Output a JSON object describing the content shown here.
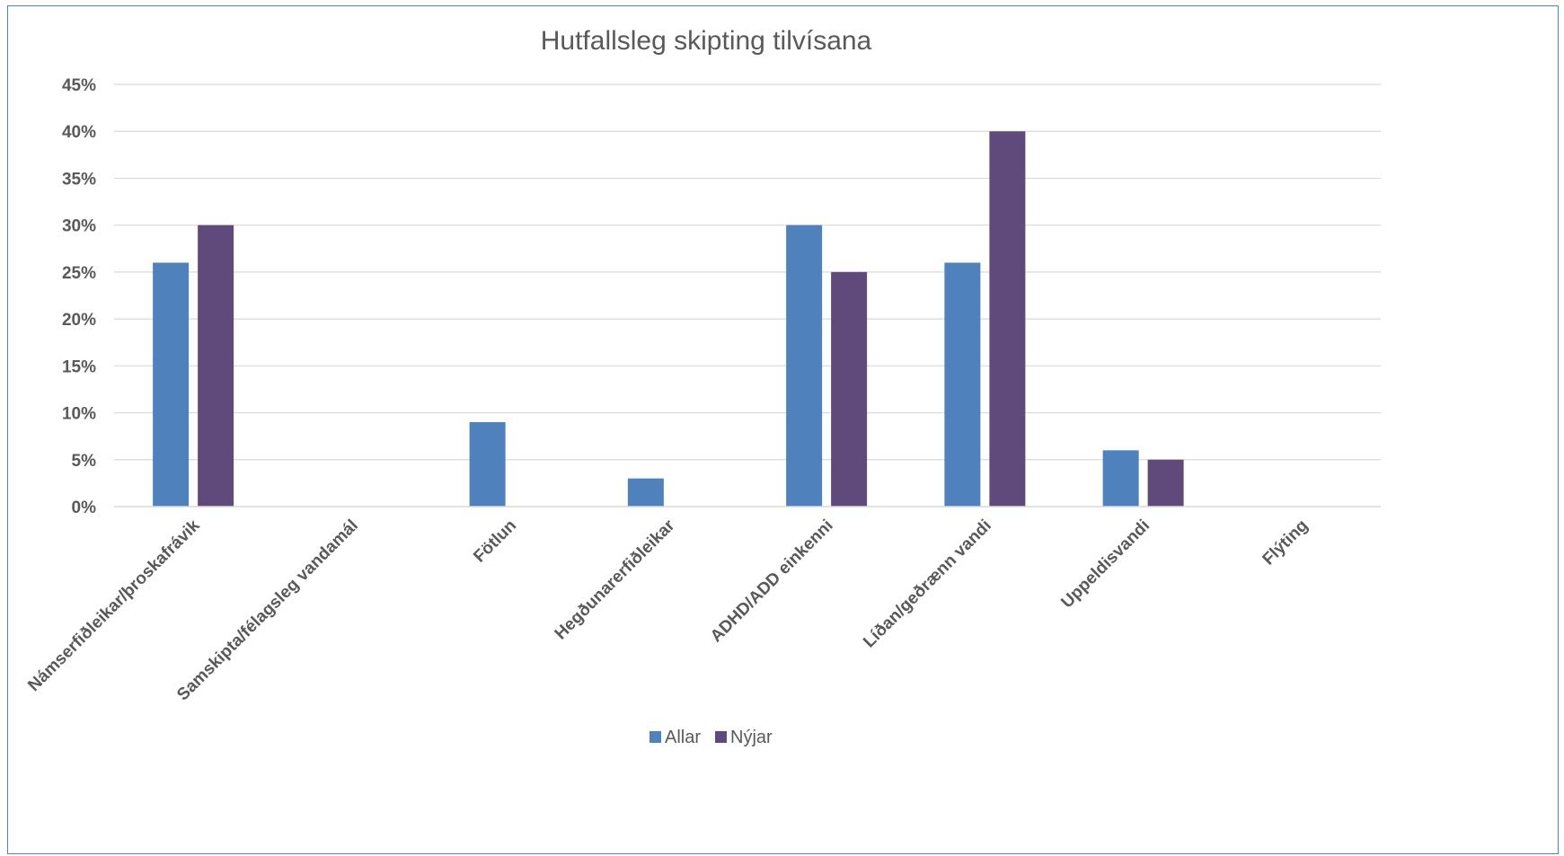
{
  "chart_data": {
    "type": "bar",
    "title": "Hutfallsleg skipting tilvísana",
    "xlabel": "",
    "ylabel": "",
    "ylim": [
      0,
      45
    ],
    "y_tick_step": 5,
    "y_tick_format": "percent",
    "grid": true,
    "legend_position": "bottom",
    "categories": [
      "Námserfiðleikar/þroskafrávik",
      "Samskipta/félagsleg vandamál",
      "Fötlun",
      "Hegðunarerfiðleikar",
      "ADHD/ADD einkenni",
      "Líðan/geðrænn vandi",
      "Uppeldisvandi",
      "Flýting"
    ],
    "series": [
      {
        "name": "Allar",
        "color": "#4f81bd",
        "values": [
          26,
          0,
          9,
          3,
          30,
          26,
          6,
          0
        ]
      },
      {
        "name": "Nýjar",
        "color": "#604a7b",
        "values": [
          30,
          0,
          0,
          0,
          25,
          40,
          5,
          0
        ]
      }
    ]
  }
}
